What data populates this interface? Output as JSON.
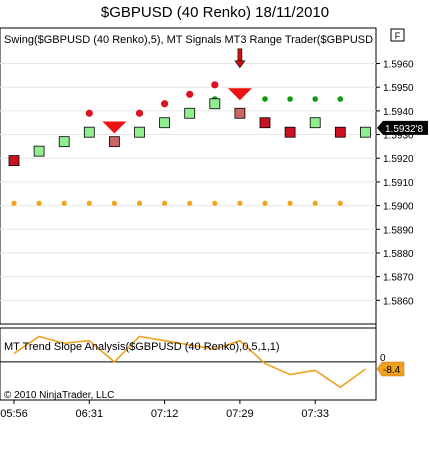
{
  "title": "$GBPUSD (40 Renko)  18/11/2010",
  "panel_top": {
    "label": "Swing($GBPUSD (40 Renko),5), MT Signals MT3 Range Trader($GBPUSD",
    "button": "F",
    "price_badge": "1.5932'8"
  },
  "panel_bottom": {
    "label": "MT Trend Slope Analysis($GBPUSD (40 Renko),0,5,1,1)",
    "zero_label": "0",
    "value_badge": "-8.4",
    "copyright": "© 2010 NinjaTrader, LLC"
  },
  "colors": {
    "bull_box": "#90ee90",
    "bear_box": "#cc1122",
    "signal_box": "#cc6666",
    "swing_high": "#dd1122",
    "signal_dot": "#119911",
    "swing_low": "#f2a51a",
    "arrow": "#ee1111",
    "down_arrow": "#cc1111",
    "slope_line": "#f0a020"
  },
  "chart_data": {
    "type": "renko",
    "x_tick_labels": [
      "05:56",
      "06:31",
      "07:12",
      "07:29",
      "07:33"
    ],
    "x_tick_bars": [
      0,
      3,
      6,
      9,
      12
    ],
    "y_ticks": [
      1.586,
      1.587,
      1.588,
      1.589,
      1.59,
      1.591,
      1.592,
      1.593,
      1.594,
      1.595,
      1.596
    ],
    "y_tick_labels": [
      "1.5860",
      "1.5870",
      "1.5880",
      "1.5890",
      "1.5900",
      "1.5910",
      "1.5920",
      "1.5930",
      "1.5940",
      "1.5950",
      "1.5960"
    ],
    "ylim": [
      1.585,
      1.5975
    ],
    "bricks": [
      {
        "bar": 0,
        "value": 1.5919,
        "dir": "down"
      },
      {
        "bar": 1,
        "value": 1.5923,
        "dir": "up"
      },
      {
        "bar": 2,
        "value": 1.5927,
        "dir": "up"
      },
      {
        "bar": 3,
        "value": 1.5931,
        "dir": "up"
      },
      {
        "bar": 4,
        "value": 1.5927,
        "dir": "signal"
      },
      {
        "bar": 5,
        "value": 1.5931,
        "dir": "up"
      },
      {
        "bar": 6,
        "value": 1.5935,
        "dir": "up"
      },
      {
        "bar": 7,
        "value": 1.5939,
        "dir": "up"
      },
      {
        "bar": 8,
        "value": 1.5943,
        "dir": "up"
      },
      {
        "bar": 9,
        "value": 1.5939,
        "dir": "signal"
      },
      {
        "bar": 10,
        "value": 1.5935,
        "dir": "down"
      },
      {
        "bar": 11,
        "value": 1.5931,
        "dir": "down"
      },
      {
        "bar": 12,
        "value": 1.5935,
        "dir": "up"
      },
      {
        "bar": 13,
        "value": 1.5931,
        "dir": "down"
      },
      {
        "bar": 14,
        "value": 1.5931,
        "dir": "up"
      }
    ],
    "swing_highs": [
      {
        "bar": 3,
        "value": 1.5939
      },
      {
        "bar": 5,
        "value": 1.5939
      },
      {
        "bar": 6,
        "value": 1.5943
      },
      {
        "bar": 7,
        "value": 1.5947
      },
      {
        "bar": 8,
        "value": 1.5951
      }
    ],
    "signal_dots": [
      {
        "bar": 8,
        "value": 1.5945
      },
      {
        "bar": 10,
        "value": 1.5945
      },
      {
        "bar": 11,
        "value": 1.5945
      },
      {
        "bar": 12,
        "value": 1.5945
      },
      {
        "bar": 13,
        "value": 1.5945
      }
    ],
    "swing_lows": [
      {
        "bar": 0,
        "value": 1.5901
      },
      {
        "bar": 1,
        "value": 1.5901
      },
      {
        "bar": 2,
        "value": 1.5901
      },
      {
        "bar": 3,
        "value": 1.5901
      },
      {
        "bar": 4,
        "value": 1.5901
      },
      {
        "bar": 5,
        "value": 1.5901
      },
      {
        "bar": 6,
        "value": 1.5901
      },
      {
        "bar": 7,
        "value": 1.5901
      },
      {
        "bar": 8,
        "value": 1.5901
      },
      {
        "bar": 9,
        "value": 1.5901
      },
      {
        "bar": 10,
        "value": 1.5901
      },
      {
        "bar": 11,
        "value": 1.5901
      },
      {
        "bar": 12,
        "value": 1.5901
      },
      {
        "bar": 13,
        "value": 1.5901
      }
    ],
    "sell_triangles": [
      {
        "bar": 4,
        "value": 1.5933
      },
      {
        "bar": 9,
        "value": 1.5947
      }
    ],
    "down_arrow": {
      "bar": 9,
      "value": 1.5962
    },
    "price": 1.59328,
    "slope": {
      "ylim": [
        -45,
        40
      ],
      "zero": 0,
      "x": [
        0,
        1,
        2,
        3,
        4,
        5,
        6,
        7,
        8,
        9,
        10,
        11,
        12,
        13,
        14
      ],
      "values": [
        10,
        30,
        22,
        25,
        0,
        30,
        25,
        20,
        15,
        25,
        -2,
        -15,
        -10,
        -30,
        -8.4
      ]
    }
  }
}
